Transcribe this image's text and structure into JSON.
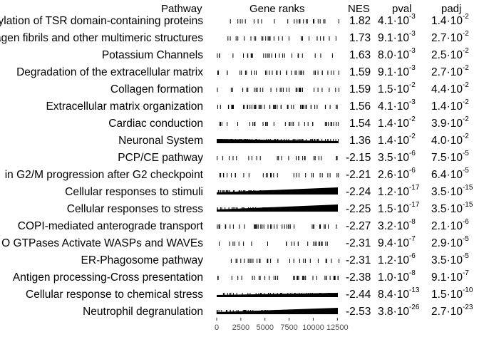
{
  "chart_data": {
    "type": "table",
    "headers": {
      "pathway": "Pathway",
      "ranks": "Gene ranks",
      "nes": "NES",
      "pval": "pval",
      "padj": "padj"
    },
    "x_axis": {
      "range": [
        0,
        12700
      ],
      "ticks": [
        0,
        2500,
        5000,
        7500,
        10000,
        12500
      ],
      "tick_labels": [
        "0",
        "2500",
        "5000",
        "7500",
        "10000",
        "12500"
      ]
    },
    "rows": [
      {
        "pathway": "ylation of TSR domain-containing proteins",
        "nes": "1.82",
        "pval": {
          "m": "4.1",
          "e": "-3"
        },
        "padj": {
          "m": "1.4",
          "e": "-2"
        },
        "direction": "pos",
        "density": 0.25,
        "bar_max": 0
      },
      {
        "pathway": "agen fibrils and other multimeric structures",
        "nes": "1.73",
        "pval": {
          "m": "9.1",
          "e": "-3"
        },
        "padj": {
          "m": "2.7",
          "e": "-2"
        },
        "direction": "pos",
        "density": 0.35,
        "bar_max": 0
      },
      {
        "pathway": "Potassium Channels",
        "nes": "1.63",
        "pval": {
          "m": "8.0",
          "e": "-3"
        },
        "padj": {
          "m": "2.5",
          "e": "-2"
        },
        "direction": "pos",
        "density": 0.3,
        "bar_max": 0
      },
      {
        "pathway": "Degradation of the extracellular matrix",
        "nes": "1.59",
        "pval": {
          "m": "9.1",
          "e": "-3"
        },
        "padj": {
          "m": "2.7",
          "e": "-2"
        },
        "direction": "pos",
        "density": 0.5,
        "bar_max": 0
      },
      {
        "pathway": "Collagen formation",
        "nes": "1.59",
        "pval": {
          "m": "1.5",
          "e": "-2"
        },
        "padj": {
          "m": "4.4",
          "e": "-2"
        },
        "direction": "pos",
        "density": 0.4,
        "bar_max": 0
      },
      {
        "pathway": "Extracellular matrix organization",
        "nes": "1.56",
        "pval": {
          "m": "4.1",
          "e": "-3"
        },
        "padj": {
          "m": "1.4",
          "e": "-2"
        },
        "direction": "pos",
        "density": 0.8,
        "bar_max": 0
      },
      {
        "pathway": "Cardiac conduction",
        "nes": "1.54",
        "pval": {
          "m": "1.4",
          "e": "-2"
        },
        "padj": {
          "m": "3.9",
          "e": "-2"
        },
        "direction": "pos",
        "density": 0.45,
        "bar_max": 0
      },
      {
        "pathway": "Neuronal System",
        "nes": "1.36",
        "pval": {
          "m": "1.4",
          "e": "-2"
        },
        "padj": {
          "m": "4.0",
          "e": "-2"
        },
        "direction": "pos",
        "density": 1.0,
        "bar_max": 3
      },
      {
        "pathway": "PCP/CE pathway",
        "nes": "-2.15",
        "pval": {
          "m": "3.5",
          "e": "-6"
        },
        "padj": {
          "m": "7.5",
          "e": "-5"
        },
        "direction": "neg",
        "density": 0.3,
        "bar_max": 0
      },
      {
        "pathway": "in G2/M progression after G2 checkpoint",
        "nes": "-2.21",
        "pval": {
          "m": "2.6",
          "e": "-6"
        },
        "padj": {
          "m": "6.4",
          "e": "-5"
        },
        "direction": "neg",
        "density": 0.35,
        "bar_max": 0
      },
      {
        "pathway": "Cellular responses to stimuli",
        "nes": "-2.24",
        "pval": {
          "m": "1.2",
          "e": "-17"
        },
        "padj": {
          "m": "3.5",
          "e": "-15"
        },
        "direction": "neg",
        "density": 1.0,
        "bar_max": 7
      },
      {
        "pathway": "Cellular responses to stress",
        "nes": "-2.25",
        "pval": {
          "m": "1.5",
          "e": "-17"
        },
        "padj": {
          "m": "3.5",
          "e": "-15"
        },
        "direction": "neg",
        "density": 1.0,
        "bar_max": 7
      },
      {
        "pathway": "COPI-mediated anterograde transport",
        "nes": "-2.27",
        "pval": {
          "m": "3.2",
          "e": "-8"
        },
        "padj": {
          "m": "2.1",
          "e": "-6"
        },
        "direction": "neg",
        "density": 0.55,
        "bar_max": 0
      },
      {
        "pathway": "O GTPases Activate WASPs and WAVEs",
        "nes": "-2.31",
        "pval": {
          "m": "9.4",
          "e": "-7"
        },
        "padj": {
          "m": "2.9",
          "e": "-5"
        },
        "direction": "neg",
        "density": 0.25,
        "bar_max": 0
      },
      {
        "pathway": "ER-Phagosome pathway",
        "nes": "-2.31",
        "pval": {
          "m": "1.2",
          "e": "-6"
        },
        "padj": {
          "m": "3.5",
          "e": "-5"
        },
        "direction": "neg",
        "density": 0.3,
        "bar_max": 0
      },
      {
        "pathway": "Antigen processing-Cross presentation",
        "nes": "-2.38",
        "pval": {
          "m": "1.0",
          "e": "-8"
        },
        "padj": {
          "m": "9.1",
          "e": "-7"
        },
        "direction": "neg",
        "density": 0.45,
        "bar_max": 0
      },
      {
        "pathway": "Cellular response to chemical stress",
        "nes": "-2.44",
        "pval": {
          "m": "8.4",
          "e": "-13"
        },
        "padj": {
          "m": "1.5",
          "e": "-10"
        },
        "direction": "neg",
        "density": 0.6,
        "bar_max": 3
      },
      {
        "pathway": "Neutrophil degranulation",
        "nes": "-2.53",
        "pval": {
          "m": "3.8",
          "e": "-26"
        },
        "padj": {
          "m": "2.7",
          "e": "-23"
        },
        "direction": "neg",
        "density": 1.0,
        "bar_max": 6
      }
    ]
  }
}
